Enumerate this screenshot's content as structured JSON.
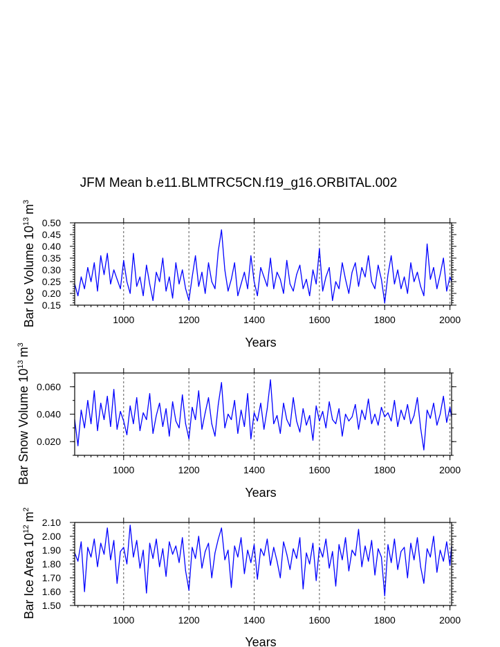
{
  "title": "JFM Mean b.e11.BLMTRC5CN.f19_g16.ORBITAL.002",
  "chart_data": [
    {
      "type": "line",
      "ylabel_main": "Bar Ice Volume 10",
      "ylabel_exp1": "13",
      "ylabel_unit": "m",
      "ylabel_exp2": "3",
      "xlabel": "Years",
      "xlim": [
        850,
        2005
      ],
      "ylim": [
        0.15,
        0.5
      ],
      "xticks": [
        1000,
        1200,
        1400,
        1600,
        1800,
        2000
      ],
      "xtick_labels": [
        "1000",
        "1200",
        "1400",
        "1600",
        "1800",
        "2000"
      ],
      "yticks": [
        0.15,
        0.2,
        0.25,
        0.3,
        0.35,
        0.4,
        0.45,
        0.5
      ],
      "ytick_labels": [
        "0.15",
        "0.20",
        "0.25",
        "0.30",
        "0.35",
        "0.40",
        "0.45",
        "0.50"
      ],
      "yminor_step": 0.01,
      "vgrid": [
        1000,
        1200,
        1400,
        1600,
        1800,
        2000
      ],
      "series": [
        {
          "name": "Bar Ice Volume",
          "color": "#0000ff",
          "x": [
            850,
            860,
            870,
            880,
            890,
            900,
            910,
            920,
            930,
            940,
            950,
            960,
            970,
            980,
            990,
            1000,
            1010,
            1020,
            1030,
            1040,
            1050,
            1060,
            1070,
            1080,
            1090,
            1100,
            1110,
            1120,
            1130,
            1140,
            1150,
            1160,
            1170,
            1180,
            1190,
            1200,
            1210,
            1220,
            1230,
            1240,
            1250,
            1260,
            1270,
            1280,
            1290,
            1300,
            1310,
            1320,
            1330,
            1340,
            1350,
            1360,
            1370,
            1380,
            1390,
            1400,
            1410,
            1420,
            1430,
            1440,
            1450,
            1460,
            1470,
            1480,
            1490,
            1500,
            1510,
            1520,
            1530,
            1540,
            1550,
            1560,
            1570,
            1580,
            1590,
            1600,
            1610,
            1620,
            1630,
            1640,
            1650,
            1660,
            1670,
            1680,
            1690,
            1700,
            1710,
            1720,
            1730,
            1740,
            1750,
            1760,
            1770,
            1780,
            1790,
            1800,
            1810,
            1820,
            1830,
            1840,
            1850,
            1860,
            1870,
            1880,
            1890,
            1900,
            1910,
            1920,
            1930,
            1940,
            1950,
            1960,
            1970,
            1980,
            1990,
            2000,
            2005
          ],
          "values": [
            0.24,
            0.19,
            0.27,
            0.22,
            0.31,
            0.25,
            0.33,
            0.21,
            0.36,
            0.28,
            0.37,
            0.24,
            0.3,
            0.26,
            0.22,
            0.34,
            0.25,
            0.2,
            0.37,
            0.23,
            0.27,
            0.19,
            0.32,
            0.24,
            0.17,
            0.29,
            0.25,
            0.35,
            0.21,
            0.27,
            0.18,
            0.33,
            0.24,
            0.3,
            0.22,
            0.17,
            0.27,
            0.36,
            0.23,
            0.29,
            0.2,
            0.33,
            0.25,
            0.22,
            0.38,
            0.47,
            0.3,
            0.21,
            0.26,
            0.33,
            0.19,
            0.24,
            0.29,
            0.22,
            0.36,
            0.25,
            0.19,
            0.31,
            0.27,
            0.23,
            0.35,
            0.22,
            0.29,
            0.26,
            0.2,
            0.34,
            0.24,
            0.21,
            0.28,
            0.32,
            0.22,
            0.26,
            0.19,
            0.3,
            0.24,
            0.39,
            0.21,
            0.27,
            0.31,
            0.17,
            0.25,
            0.22,
            0.33,
            0.26,
            0.2,
            0.29,
            0.33,
            0.23,
            0.31,
            0.27,
            0.36,
            0.25,
            0.22,
            0.32,
            0.26,
            0.16,
            0.28,
            0.36,
            0.24,
            0.3,
            0.22,
            0.27,
            0.2,
            0.33,
            0.25,
            0.29,
            0.23,
            0.19,
            0.41,
            0.26,
            0.31,
            0.22,
            0.28,
            0.35,
            0.21,
            0.27,
            0.25
          ]
        }
      ]
    },
    {
      "type": "line",
      "ylabel_main": "Bar Snow Volume 10",
      "ylabel_exp1": "13",
      "ylabel_unit": "m",
      "ylabel_exp2": "3",
      "xlabel": "Years",
      "xlim": [
        850,
        2005
      ],
      "ylim": [
        0.01,
        0.07
      ],
      "xticks": [
        1000,
        1200,
        1400,
        1600,
        1800,
        2000
      ],
      "xtick_labels": [
        "1000",
        "1200",
        "1400",
        "1600",
        "1800",
        "2000"
      ],
      "yticks": [
        0.02,
        0.04,
        0.06
      ],
      "ytick_labels": [
        "0.020",
        "0.040",
        "0.060"
      ],
      "yminor_step": 0.01,
      "vgrid": [
        1000,
        1200,
        1400,
        1600,
        1800,
        2000
      ],
      "series": [
        {
          "name": "Bar Snow Volume",
          "color": "#0000ff",
          "x": [
            850,
            860,
            870,
            880,
            890,
            900,
            910,
            920,
            930,
            940,
            950,
            960,
            970,
            980,
            990,
            1000,
            1010,
            1020,
            1030,
            1040,
            1050,
            1060,
            1070,
            1080,
            1090,
            1100,
            1110,
            1120,
            1130,
            1140,
            1150,
            1160,
            1170,
            1180,
            1190,
            1200,
            1210,
            1220,
            1230,
            1240,
            1250,
            1260,
            1270,
            1280,
            1290,
            1300,
            1310,
            1320,
            1330,
            1340,
            1350,
            1360,
            1370,
            1380,
            1390,
            1400,
            1410,
            1420,
            1430,
            1440,
            1450,
            1460,
            1470,
            1480,
            1490,
            1500,
            1510,
            1520,
            1530,
            1540,
            1550,
            1560,
            1570,
            1580,
            1590,
            1600,
            1610,
            1620,
            1630,
            1640,
            1650,
            1660,
            1670,
            1680,
            1690,
            1700,
            1710,
            1720,
            1730,
            1740,
            1750,
            1760,
            1770,
            1780,
            1790,
            1800,
            1810,
            1820,
            1830,
            1840,
            1850,
            1860,
            1870,
            1880,
            1890,
            1900,
            1910,
            1920,
            1930,
            1940,
            1950,
            1960,
            1970,
            1980,
            1990,
            2000,
            2005
          ],
          "values": [
            0.036,
            0.017,
            0.043,
            0.03,
            0.05,
            0.033,
            0.057,
            0.028,
            0.048,
            0.036,
            0.053,
            0.031,
            0.058,
            0.029,
            0.042,
            0.035,
            0.025,
            0.046,
            0.033,
            0.052,
            0.028,
            0.041,
            0.036,
            0.055,
            0.026,
            0.039,
            0.048,
            0.031,
            0.044,
            0.024,
            0.049,
            0.035,
            0.03,
            0.054,
            0.033,
            0.022,
            0.045,
            0.036,
            0.057,
            0.029,
            0.041,
            0.052,
            0.033,
            0.024,
            0.047,
            0.063,
            0.03,
            0.04,
            0.036,
            0.05,
            0.026,
            0.043,
            0.031,
            0.055,
            0.022,
            0.041,
            0.035,
            0.048,
            0.029,
            0.044,
            0.065,
            0.033,
            0.039,
            0.026,
            0.048,
            0.036,
            0.031,
            0.052,
            0.035,
            0.027,
            0.044,
            0.032,
            0.039,
            0.021,
            0.046,
            0.035,
            0.042,
            0.03,
            0.049,
            0.036,
            0.033,
            0.044,
            0.024,
            0.04,
            0.035,
            0.038,
            0.047,
            0.029,
            0.043,
            0.036,
            0.051,
            0.033,
            0.04,
            0.032,
            0.045,
            0.038,
            0.041,
            0.035,
            0.05,
            0.031,
            0.043,
            0.036,
            0.047,
            0.033,
            0.039,
            0.052,
            0.03,
            0.014,
            0.043,
            0.037,
            0.048,
            0.032,
            0.04,
            0.053,
            0.034,
            0.045,
            0.038
          ]
        }
      ]
    },
    {
      "type": "line",
      "ylabel_main": "Bar Ice Area 10",
      "ylabel_exp1": "12",
      "ylabel_unit": "m",
      "ylabel_exp2": "2",
      "xlabel": "Years",
      "xlim": [
        850,
        2005
      ],
      "ylim": [
        1.5,
        2.1
      ],
      "xticks": [
        1000,
        1200,
        1400,
        1600,
        1800,
        2000
      ],
      "xtick_labels": [
        "1000",
        "1200",
        "1400",
        "1600",
        "1800",
        "2000"
      ],
      "yticks": [
        1.5,
        1.6,
        1.7,
        1.8,
        1.9,
        2.0,
        2.1
      ],
      "ytick_labels": [
        "1.50",
        "1.60",
        "1.70",
        "1.80",
        "1.90",
        "2.00",
        "2.10"
      ],
      "yminor_step": 0.02,
      "vgrid": [
        1000,
        1200,
        1400,
        1600,
        1800,
        2000
      ],
      "series": [
        {
          "name": "Bar Ice Area",
          "color": "#0000ff",
          "x": [
            850,
            860,
            870,
            880,
            890,
            900,
            910,
            920,
            930,
            940,
            950,
            960,
            970,
            980,
            990,
            1000,
            1010,
            1020,
            1030,
            1040,
            1050,
            1060,
            1070,
            1080,
            1090,
            1100,
            1110,
            1120,
            1130,
            1140,
            1150,
            1160,
            1170,
            1180,
            1190,
            1200,
            1210,
            1220,
            1230,
            1240,
            1250,
            1260,
            1270,
            1280,
            1290,
            1300,
            1310,
            1320,
            1330,
            1340,
            1350,
            1360,
            1370,
            1380,
            1390,
            1400,
            1410,
            1420,
            1430,
            1440,
            1450,
            1460,
            1470,
            1480,
            1490,
            1500,
            1510,
            1520,
            1530,
            1540,
            1550,
            1560,
            1570,
            1580,
            1590,
            1600,
            1610,
            1620,
            1630,
            1640,
            1650,
            1660,
            1670,
            1680,
            1690,
            1700,
            1710,
            1720,
            1730,
            1740,
            1750,
            1760,
            1770,
            1780,
            1790,
            1800,
            1810,
            1820,
            1830,
            1840,
            1850,
            1860,
            1870,
            1880,
            1890,
            1900,
            1910,
            1920,
            1930,
            1940,
            1950,
            1960,
            1970,
            1980,
            1990,
            2000,
            2005
          ],
          "values": [
            1.88,
            1.82,
            1.96,
            1.6,
            1.92,
            1.85,
            1.98,
            1.78,
            1.95,
            1.87,
            2.06,
            1.83,
            1.97,
            1.66,
            1.89,
            1.92,
            1.8,
            2.08,
            1.85,
            1.97,
            1.77,
            1.9,
            1.59,
            1.95,
            1.84,
            1.98,
            1.78,
            1.91,
            1.71,
            1.96,
            1.87,
            1.93,
            1.81,
            1.99,
            1.75,
            1.61,
            1.92,
            1.84,
            2.0,
            1.77,
            1.89,
            1.95,
            1.7,
            1.88,
            1.98,
            2.06,
            1.83,
            1.9,
            1.63,
            1.93,
            1.85,
            1.99,
            1.73,
            1.9,
            1.81,
            1.94,
            1.69,
            1.91,
            1.86,
            1.98,
            1.79,
            1.92,
            1.82,
            1.7,
            1.96,
            1.87,
            1.76,
            1.91,
            1.84,
            1.99,
            1.62,
            1.88,
            1.8,
            1.95,
            1.68,
            1.92,
            1.85,
            1.98,
            1.77,
            1.89,
            1.64,
            1.94,
            1.83,
            1.99,
            1.75,
            1.9,
            1.86,
            2.05,
            1.78,
            1.93,
            1.82,
            1.97,
            1.72,
            1.91,
            1.85,
            1.57,
            1.94,
            1.81,
            1.98,
            1.76,
            1.89,
            1.92,
            1.7,
            1.95,
            1.83,
            1.99,
            1.78,
            1.66,
            1.91,
            1.85,
            2.0,
            1.74,
            1.9,
            1.82,
            1.96,
            1.79,
            1.93
          ]
        }
      ]
    }
  ]
}
